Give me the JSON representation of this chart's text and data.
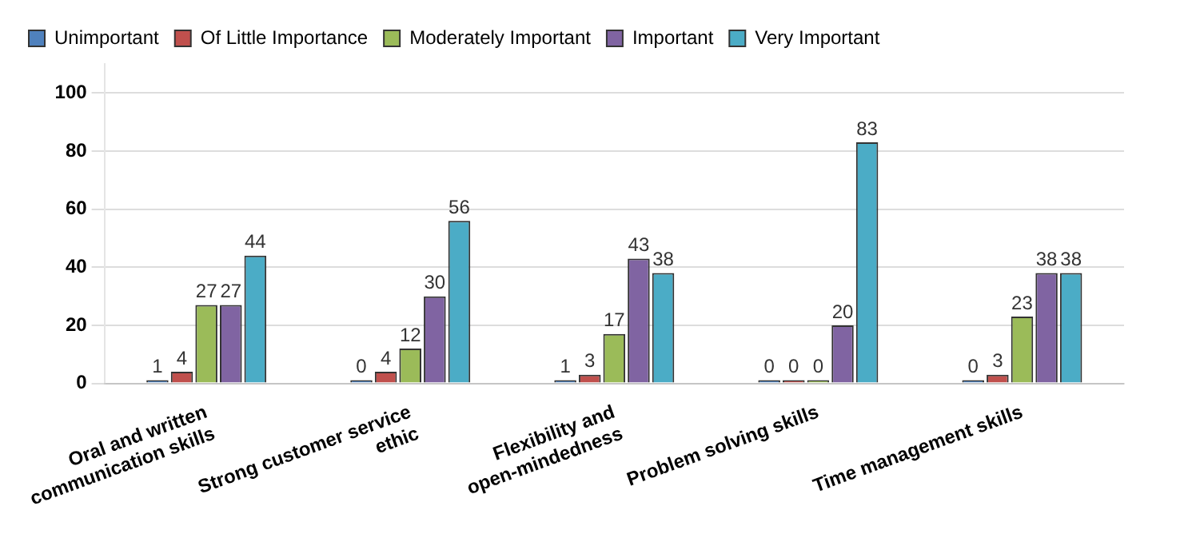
{
  "chart_data": {
    "type": "bar",
    "categories": [
      "Oral and written\ncommunication skills",
      "Strong customer service\nethic",
      "Flexibility and\nopen-mindedness",
      "Problem solving skills",
      "Time management skills"
    ],
    "series": [
      {
        "name": "Unimportant",
        "color": "#4f81bd",
        "values": [
          1,
          0,
          1,
          0,
          0
        ]
      },
      {
        "name": "Of Little Importance",
        "color": "#c0504d",
        "values": [
          4,
          4,
          3,
          0,
          3
        ]
      },
      {
        "name": "Moderately Important",
        "color": "#9bbb59",
        "values": [
          27,
          12,
          17,
          0,
          23
        ]
      },
      {
        "name": "Important",
        "color": "#8064a2",
        "values": [
          27,
          30,
          43,
          20,
          38
        ]
      },
      {
        "name": "Very Important",
        "color": "#4bacc6",
        "values": [
          44,
          56,
          38,
          83,
          38
        ]
      }
    ],
    "ylim": [
      0,
      110
    ],
    "yticks": [
      0,
      20,
      40,
      60,
      80,
      100
    ],
    "grid": "y",
    "legend": "top",
    "data_labels": true
  }
}
